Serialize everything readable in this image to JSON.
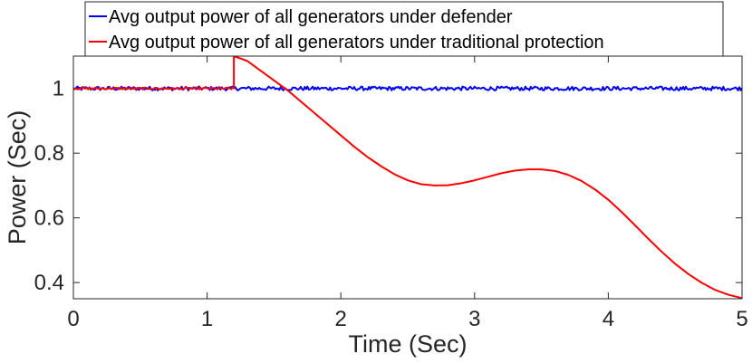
{
  "chart_data": {
    "type": "line",
    "xlabel": "Time (Sec)",
    "ylabel": "Power (Sec)",
    "xlim": [
      0,
      5
    ],
    "ylim": [
      0.35,
      1.1
    ],
    "x_ticks": [
      0,
      1,
      2,
      3,
      4,
      5
    ],
    "y_ticks": [
      0.4,
      0.6,
      0.8,
      1
    ],
    "grid": false,
    "legend_position": "top",
    "series": [
      {
        "name": "Avg output power of all generators under defender",
        "color": "#0000ff",
        "x": [
          0,
          0.5,
          1.0,
          1.5,
          2.0,
          2.5,
          3.0,
          3.5,
          4.0,
          4.5,
          5.0
        ],
        "y": [
          1.0,
          1.0,
          1.0,
          1.0,
          1.0,
          1.0,
          1.0,
          1.0,
          1.0,
          1.0,
          1.0
        ],
        "noise_amplitude": 0.006
      },
      {
        "name": "Avg output power of all generators under traditional protection",
        "color": "#ff0000",
        "x": [
          0,
          1.2,
          1.2,
          1.3,
          1.4,
          1.5,
          1.6,
          1.7,
          1.8,
          1.9,
          2.0,
          2.1,
          2.2,
          2.3,
          2.4,
          2.5,
          2.6,
          2.7,
          2.8,
          2.9,
          3.0,
          3.1,
          3.2,
          3.3,
          3.4,
          3.5,
          3.6,
          3.7,
          3.8,
          3.9,
          4.0,
          4.1,
          4.2,
          4.3,
          4.4,
          4.5,
          4.6,
          4.7,
          4.8,
          4.9,
          5.0
        ],
        "y": [
          1.0,
          1.0,
          1.1,
          1.085,
          1.055,
          1.025,
          0.995,
          0.96,
          0.925,
          0.89,
          0.855,
          0.82,
          0.788,
          0.76,
          0.735,
          0.716,
          0.704,
          0.7,
          0.701,
          0.707,
          0.716,
          0.727,
          0.738,
          0.746,
          0.75,
          0.75,
          0.745,
          0.733,
          0.714,
          0.688,
          0.656,
          0.618,
          0.577,
          0.535,
          0.495,
          0.458,
          0.426,
          0.399,
          0.377,
          0.362,
          0.352
        ],
        "noise_amplitude": 0.003,
        "noise_until_x": 1.2
      }
    ]
  }
}
